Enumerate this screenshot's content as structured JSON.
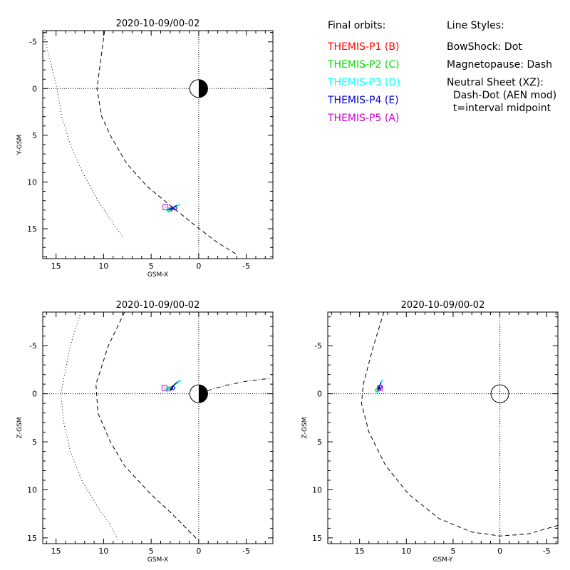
{
  "chart_data": [
    {
      "type": "line",
      "title": "2020-10-09/00-02",
      "xlabel": "GSM-X",
      "ylabel": "Y-GSM",
      "xlim": [
        16.4,
        -7.8
      ],
      "ylim": [
        -6.2,
        18.2
      ],
      "xticks": [
        "15",
        "10",
        "5",
        "0",
        "-5"
      ],
      "yticks": [
        "-5",
        "0",
        "5",
        "10",
        "15"
      ],
      "planet": "earth-half",
      "bowshock": [
        [
          16.4,
          -6.2
        ],
        [
          14.9,
          0
        ],
        [
          14.4,
          3
        ],
        [
          13.5,
          6
        ],
        [
          12.2,
          9
        ],
        [
          10.6,
          12
        ],
        [
          9.3,
          14
        ],
        [
          7.9,
          16
        ]
      ],
      "magnetopause": [
        [
          9.9,
          -6.2
        ],
        [
          10.7,
          0
        ],
        [
          10.2,
          3
        ],
        [
          9.3,
          5
        ],
        [
          7.6,
          8
        ],
        [
          5.4,
          10.5
        ],
        [
          3.0,
          12.5
        ],
        [
          0.2,
          14.8
        ],
        [
          -2.0,
          16.5
        ],
        [
          -4.1,
          17.8
        ]
      ],
      "neutral_sheet": [],
      "orbits": [
        {
          "name": "THEMIS-P1 (B)",
          "color": "#ff0000",
          "points": [
            [
              2.7,
              12.8
            ],
            [
              2.9,
              12.9
            ]
          ]
        },
        {
          "name": "THEMIS-P2 (C)",
          "color": "#00dd00",
          "points": [
            [
              2.0,
              12.4
            ],
            [
              3.1,
              13.0
            ]
          ]
        },
        {
          "name": "THEMIS-P3 (D)",
          "color": "#00ffff",
          "points": [
            [
              1.9,
              12.4
            ],
            [
              3.2,
              13.0
            ]
          ]
        },
        {
          "name": "THEMIS-P4 (E)",
          "color": "#0000cc",
          "points": [
            [
              2.3,
              12.5
            ],
            [
              3.2,
              13.0
            ],
            [
              2.5,
              12.8
            ]
          ]
        },
        {
          "name": "THEMIS-P5 (A)",
          "color": "#cc00cc",
          "points": [
            [
              3.4,
              12.7
            ],
            [
              3.5,
              12.7
            ]
          ]
        }
      ]
    },
    {
      "type": "line",
      "title": "2020-10-09/00-02",
      "xlabel": "GSM-X",
      "ylabel": "Z-GSM",
      "xlim": [
        16.4,
        -7.8
      ],
      "ylim": [
        -8.5,
        15.6
      ],
      "xticks": [
        "15",
        "10",
        "5",
        "0",
        "-5"
      ],
      "yticks": [
        "-5",
        "0",
        "5",
        "10",
        "15"
      ],
      "planet": "earth-half",
      "bowshock": [
        [
          12.4,
          -8.5
        ],
        [
          13.5,
          -5
        ],
        [
          14.5,
          0
        ],
        [
          14.2,
          3
        ],
        [
          13.5,
          6
        ],
        [
          12.3,
          9
        ],
        [
          10.5,
          12
        ],
        [
          9.4,
          13.5
        ],
        [
          8.5,
          15.2
        ]
      ],
      "magnetopause": [
        [
          7.8,
          -8.5
        ],
        [
          9.5,
          -5
        ],
        [
          10.8,
          -1
        ],
        [
          10.6,
          2
        ],
        [
          9.3,
          5
        ],
        [
          7.8,
          7.5
        ],
        [
          5.0,
          10.5
        ],
        [
          2.8,
          12.5
        ],
        [
          0.0,
          15.3
        ]
      ],
      "neutral_sheet": [
        [
          0,
          0
        ],
        [
          -1.5,
          -0.5
        ],
        [
          -3,
          -0.9
        ],
        [
          -5,
          -1.3
        ],
        [
          -7.5,
          -1.6
        ]
      ],
      "orbits": [
        {
          "name": "THEMIS-P1 (B)",
          "color": "#ff0000",
          "points": [
            [
              2.9,
              -0.6
            ],
            [
              3.0,
              -0.5
            ]
          ]
        },
        {
          "name": "THEMIS-P2 (C)",
          "color": "#00dd00",
          "points": [
            [
              2.0,
              -1.4
            ],
            [
              3.2,
              -0.5
            ]
          ]
        },
        {
          "name": "THEMIS-P3 (D)",
          "color": "#00ffff",
          "points": [
            [
              1.8,
              -1.4
            ],
            [
              3.3,
              -0.4
            ]
          ]
        },
        {
          "name": "THEMIS-P4 (E)",
          "color": "#0000cc",
          "points": [
            [
              2.3,
              -1.2
            ],
            [
              3.0,
              -0.4
            ],
            [
              2.7,
              -0.6
            ]
          ]
        },
        {
          "name": "THEMIS-P5 (A)",
          "color": "#cc00cc",
          "points": [
            [
              3.5,
              -0.6
            ],
            [
              3.6,
              -0.6
            ]
          ]
        }
      ]
    },
    {
      "type": "line",
      "title": "2020-10-09/00-02",
      "xlabel": "GSM-Y",
      "ylabel": "Z-GSM",
      "xlim": [
        18.4,
        -6.2
      ],
      "ylim": [
        -8.5,
        15.6
      ],
      "xticks": [
        "15",
        "10",
        "5",
        "0",
        "-5"
      ],
      "yticks": [
        "-5",
        "0",
        "5",
        "10",
        "15"
      ],
      "planet": "earth-circle",
      "bowshock": [
        [
          18.4,
          15.2
        ],
        [
          18.0,
          15.6
        ]
      ],
      "magnetopause": [
        [
          12.4,
          -8.5
        ],
        [
          13.5,
          -5
        ],
        [
          14.6,
          -1
        ],
        [
          14.8,
          1
        ],
        [
          14.0,
          4
        ],
        [
          12.2,
          7.5
        ],
        [
          9.7,
          10.5
        ],
        [
          6.5,
          13.0
        ],
        [
          3.0,
          14.4
        ],
        [
          0,
          14.8
        ],
        [
          -3,
          14.6
        ],
        [
          -6.2,
          13.7
        ]
      ],
      "neutral_sheet": [],
      "orbits": [
        {
          "name": "THEMIS-P1 (B)",
          "color": "#ff0000",
          "points": [
            [
              12.8,
              -0.6
            ],
            [
              12.9,
              -0.5
            ]
          ]
        },
        {
          "name": "THEMIS-P2 (C)",
          "color": "#00dd00",
          "points": [
            [
              12.6,
              -1.4
            ],
            [
              13.1,
              -0.4
            ]
          ]
        },
        {
          "name": "THEMIS-P3 (D)",
          "color": "#00ffff",
          "points": [
            [
              12.5,
              -1.5
            ],
            [
              13.1,
              -0.3
            ]
          ]
        },
        {
          "name": "THEMIS-P4 (E)",
          "color": "#0000cc",
          "points": [
            [
              12.7,
              -1.2
            ],
            [
              13.0,
              -0.4
            ],
            [
              12.8,
              -0.7
            ]
          ]
        },
        {
          "name": "THEMIS-P5 (A)",
          "color": "#cc00cc",
          "points": [
            [
              12.7,
              -0.6
            ],
            [
              12.8,
              -0.6
            ]
          ]
        }
      ]
    }
  ],
  "legend": {
    "orbits_title": "Final orbits:",
    "orbits": [
      {
        "label": "THEMIS-P1 (B)",
        "color": "#ff0000"
      },
      {
        "label": "THEMIS-P2 (C)",
        "color": "#00dd00"
      },
      {
        "label": "THEMIS-P3 (D)",
        "color": "#00ffff"
      },
      {
        "label": "THEMIS-P4 (E)",
        "color": "#0000cc"
      },
      {
        "label": "THEMIS-P5 (A)",
        "color": "#cc00cc"
      }
    ],
    "styles_title": "Line Styles:",
    "styles": [
      "BowShock: Dot",
      "Magnetopause: Dash",
      "Neutral Sheet (XZ):",
      "  Dash-Dot (AEN mod)",
      "  t=interval midpoint"
    ]
  }
}
